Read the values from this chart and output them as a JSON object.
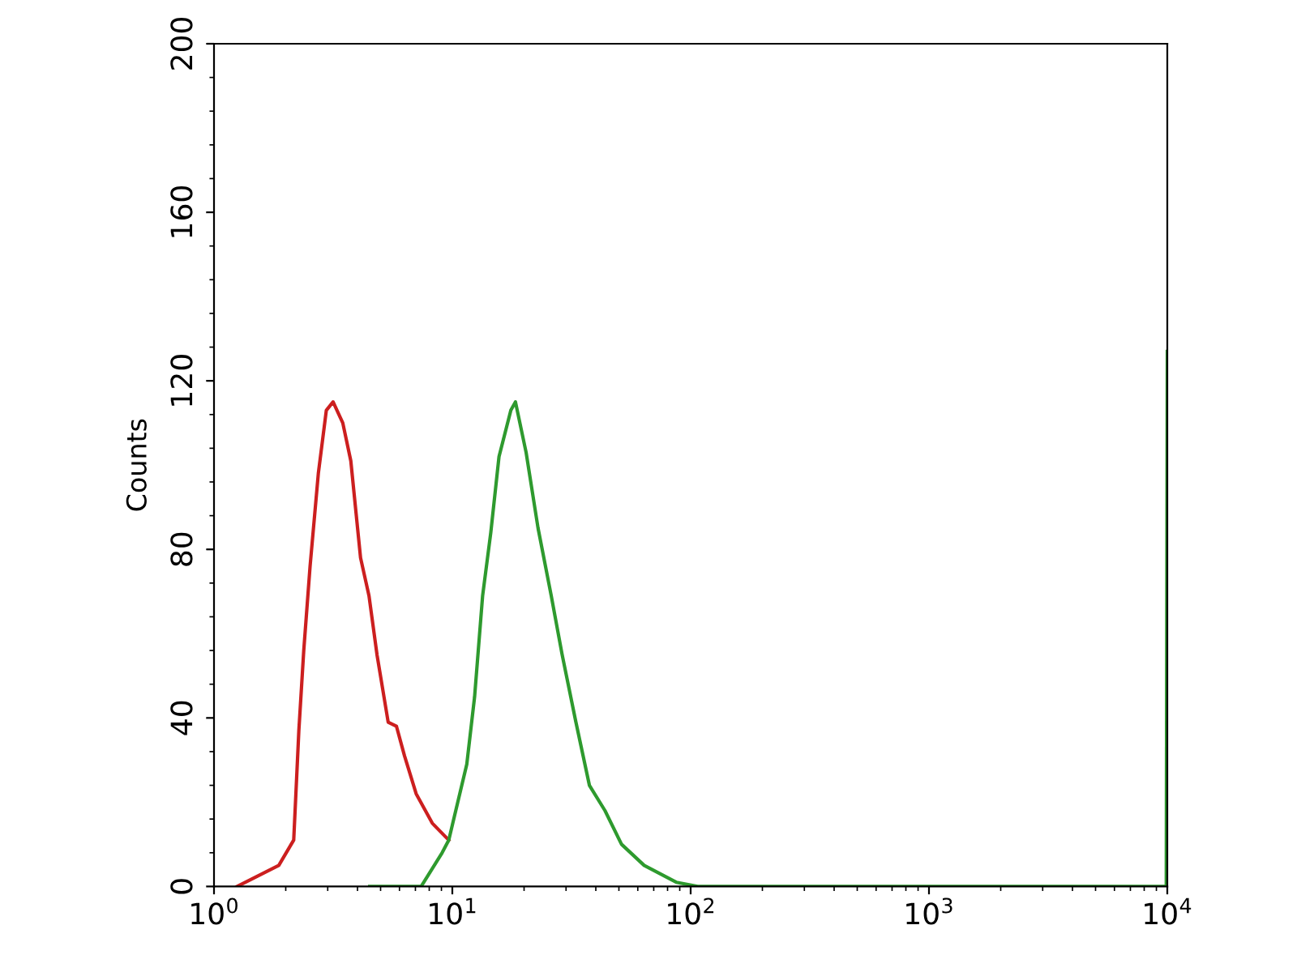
{
  "chart_data": {
    "type": "line",
    "ylabel": "Counts",
    "log": "x",
    "xlim": [
      1,
      10000
    ],
    "ylim": [
      0,
      200
    ],
    "xticks": [
      {
        "value": 1,
        "label": "10$^{0}$"
      },
      {
        "value": 10,
        "label": "10$^{1}$"
      },
      {
        "value": 100,
        "label": "10$^{2}$"
      },
      {
        "value": 1000,
        "label": "10$^{3}$"
      },
      {
        "value": 10000,
        "label": "10$^{4}$"
      }
    ],
    "yticks": [
      0,
      40,
      80,
      120,
      160,
      200
    ],
    "grid": false,
    "marker": "none",
    "line_style": "solid",
    "series": [
      {
        "color": "#cc1f1f",
        "x": [
          1.25,
          1.87,
          2.16,
          2.27,
          2.38,
          2.53,
          2.74,
          2.96,
          3.16,
          3.47,
          3.75,
          4.12,
          4.47,
          4.83,
          5.38,
          5.83,
          6.3,
          7.05,
          8.24,
          9.66
        ],
        "values": [
          0,
          5,
          11,
          37,
          56,
          76,
          98,
          113,
          115,
          110,
          101,
          78,
          69,
          55,
          39,
          38,
          31,
          22,
          15,
          11
        ]
      },
      {
        "color": "#2e9a2e",
        "x": [
          4.5,
          7.4,
          9.06,
          9.66,
          11.5,
          12.4,
          13.4,
          14.5,
          15.7,
          17.6,
          18.4,
          20.4,
          22.9,
          26,
          28.9,
          33,
          37.6,
          43.7,
          51.3,
          63.8,
          87,
          107,
          9900,
          10000
        ],
        "values": [
          0,
          0,
          8,
          11,
          29,
          45,
          69,
          84,
          102,
          113,
          115,
          103,
          85,
          69,
          55,
          39,
          24,
          18,
          10,
          5,
          1,
          0,
          0,
          127
        ]
      }
    ]
  }
}
